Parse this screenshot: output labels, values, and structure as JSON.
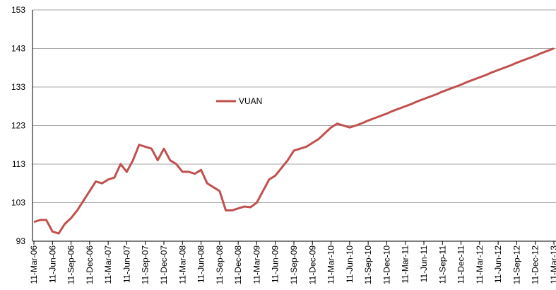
{
  "chart_data": {
    "type": "line",
    "categories": [
      "11-Mar-06",
      null,
      null,
      "11-Jun-06",
      null,
      null,
      "11-Sep-06",
      null,
      null,
      "11-Dec-06",
      null,
      null,
      "11-Mar-07",
      null,
      null,
      "11-Jun-07",
      null,
      null,
      "11-Sep-07",
      null,
      null,
      "11-Dec-07",
      null,
      null,
      "11-Mar-08",
      null,
      null,
      "11-Jun-08",
      null,
      null,
      "11-Sep-08",
      null,
      null,
      "11-Dec-08",
      null,
      null,
      "11-Mar-09",
      null,
      null,
      "11-Jun-09",
      null,
      null,
      "11-Sep-09",
      null,
      null,
      "11-Dec-09",
      null,
      null,
      "11-Mar-10",
      null,
      null,
      "11-Jun-10",
      null,
      null,
      "11-Sep-10",
      null,
      null,
      "11-Dec-10",
      null,
      null,
      "11-Mar-11",
      null,
      null,
      "11-Jun-11",
      null,
      null,
      "11-Sep-11",
      null,
      null,
      "11-Dec-11",
      null,
      null,
      "11-Mar-12",
      null,
      null,
      "11-Jun-12",
      null,
      null,
      "11-Sep-12",
      null,
      null,
      "11-Dec-12",
      null,
      null,
      "11-Mar-13"
    ],
    "series": [
      {
        "name": "VUAN",
        "color": "#c0504d",
        "values": [
          98,
          98.5,
          98.5,
          95.5,
          95,
          97.5,
          99,
          101,
          103.5,
          106,
          108.5,
          108,
          109,
          109.5,
          113,
          111,
          114,
          118,
          117.5,
          117,
          114,
          117,
          114,
          113,
          111,
          111,
          110.5,
          111.5,
          108,
          107,
          106,
          101,
          101,
          101.5,
          102,
          101.8,
          103,
          106,
          109,
          110,
          112,
          114,
          116.5,
          117,
          117.5,
          118.5,
          119.5,
          121,
          122.5,
          123.5,
          123,
          122.5,
          123,
          123.6,
          124.3,
          124.9,
          125.5,
          126.1,
          126.8,
          127.4,
          128,
          128.6,
          129.3,
          129.9,
          130.5,
          131.1,
          131.8,
          132.4,
          133,
          133.6,
          134.3,
          134.9,
          135.5,
          136.1,
          136.8,
          137.4,
          138,
          138.6,
          139.3,
          139.9,
          140.5,
          141.1,
          141.8,
          142.4,
          143
        ]
      }
    ],
    "ylim": [
      93,
      153
    ],
    "yticks": [
      93,
      103,
      113,
      123,
      133,
      143,
      153
    ],
    "grid": true,
    "legend": "center-left"
  }
}
